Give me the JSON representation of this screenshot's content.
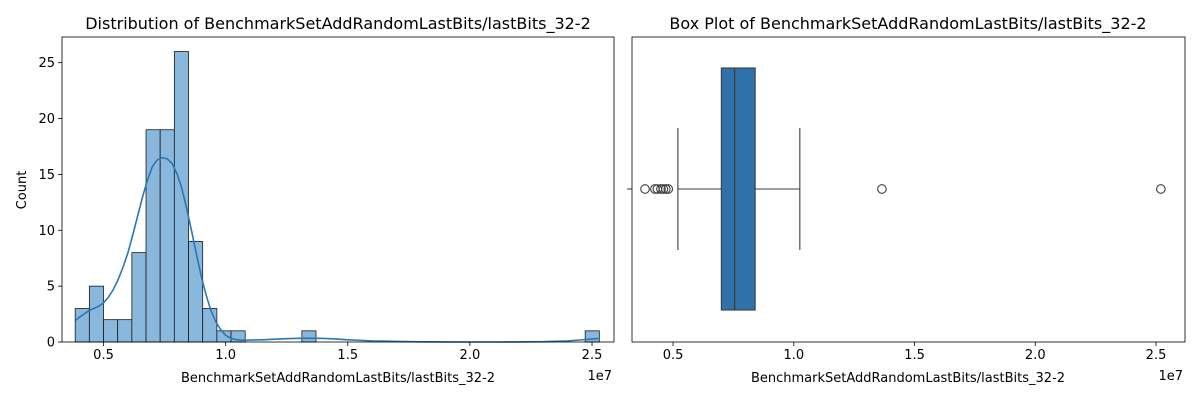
{
  "chart_data": [
    {
      "type": "bar",
      "subtype": "histogram-with-kde",
      "title": "Distribution of BenchmarkSetAddRandomLastBits/lastBits_32-2",
      "xlabel": "BenchmarkSetAddRandomLastBits/lastBits_32-2",
      "ylabel": "Count",
      "x_offset_label": "1e7",
      "xlim": [
        3300000,
        25900000
      ],
      "ylim": [
        0,
        27.3
      ],
      "xticks": [
        5000000,
        10000000,
        15000000,
        20000000,
        25000000
      ],
      "xtick_labels": [
        "0.5",
        "1.0",
        "1.5",
        "2.0",
        "2.5"
      ],
      "yticks": [
        0,
        5,
        10,
        15,
        20,
        25
      ],
      "ytick_labels": [
        "0",
        "5",
        "10",
        "15",
        "20",
        "25"
      ],
      "bin_edges": [
        3840000,
        4420000,
        5000000,
        5580000,
        6160000,
        6740000,
        7320000,
        7900000,
        8480000,
        9060000,
        9640000,
        10220000,
        10800000,
        11380000,
        11960000,
        12540000,
        13120000,
        13700000,
        14280000,
        14860000,
        15440000,
        16020000,
        16600000,
        17180000,
        17760000,
        18340000,
        18920000,
        19500000,
        20080000,
        20660000,
        21240000,
        21820000,
        22400000,
        22980000,
        23560000,
        24140000,
        24720000,
        25300000
      ],
      "counts": [
        3,
        5,
        2,
        2,
        8,
        19,
        19,
        26,
        9,
        3,
        1,
        1,
        0,
        0,
        0,
        0,
        1,
        0,
        0,
        0,
        0,
        0,
        0,
        0,
        0,
        0,
        0,
        0,
        0,
        0,
        0,
        0,
        0,
        0,
        0,
        0,
        1
      ],
      "kde": {
        "x": [
          3840000,
          4000000,
          4200000,
          4400000,
          4600000,
          4800000,
          5000000,
          5200000,
          5400000,
          5600000,
          5800000,
          6000000,
          6200000,
          6400000,
          6600000,
          6800000,
          7000000,
          7200000,
          7400000,
          7600000,
          7800000,
          8000000,
          8200000,
          8400000,
          8600000,
          8800000,
          9000000,
          9200000,
          9400000,
          9600000,
          9800000,
          10000000,
          10200000,
          10400000,
          10600000,
          10800000,
          11000000,
          11500000,
          12000000,
          12500000,
          13000000,
          13500000,
          14000000,
          14500000,
          15000000,
          16000000,
          17000000,
          18000000,
          19000000,
          20000000,
          21000000,
          22000000,
          23000000,
          24000000,
          24500000,
          25000000,
          25300000
        ],
        "y": [
          1.9,
          2.2,
          2.5,
          2.8,
          3.0,
          3.2,
          3.5,
          4.0,
          4.7,
          5.6,
          6.7,
          8.0,
          9.6,
          11.3,
          13.0,
          14.5,
          15.7,
          16.3,
          16.5,
          16.4,
          16.0,
          15.1,
          13.8,
          12.0,
          10.0,
          7.9,
          5.9,
          4.2,
          2.8,
          1.8,
          1.1,
          0.6,
          0.35,
          0.22,
          0.17,
          0.16,
          0.17,
          0.2,
          0.25,
          0.3,
          0.33,
          0.34,
          0.32,
          0.27,
          0.2,
          0.1,
          0.05,
          0.02,
          0.01,
          0.0,
          0.0,
          0.01,
          0.03,
          0.1,
          0.18,
          0.27,
          0.32
        ]
      },
      "grid": false,
      "legend": "none",
      "colors": {
        "bar_fill": "#8ab8dc",
        "bar_edge": "#1a1a1a",
        "kde_line": "#2a77b4"
      }
    },
    {
      "type": "box",
      "title": "Box Plot of BenchmarkSetAddRandomLastBits/lastBits_32-2",
      "xlabel": "BenchmarkSetAddRandomLastBits/lastBits_32-2",
      "x_offset_label": "1e7",
      "xlim": [
        3300000,
        26200000
      ],
      "xticks": [
        5000000,
        10000000,
        15000000,
        20000000,
        25000000
      ],
      "xtick_labels": [
        "0.5",
        "1.0",
        "1.5",
        "2.0",
        "2.5"
      ],
      "whisker_low": 5200000,
      "q1": 7000000,
      "median": 7550000,
      "q3": 8400000,
      "whisker_high": 10250000,
      "outliers": [
        3840000,
        4250000,
        4350000,
        4500000,
        4600000,
        4700000,
        4800000,
        13650000,
        25200000
      ],
      "grid": false,
      "legend": "none",
      "colors": {
        "box_fill": "#2f72ab",
        "line": "#3d3d3d"
      }
    }
  ]
}
